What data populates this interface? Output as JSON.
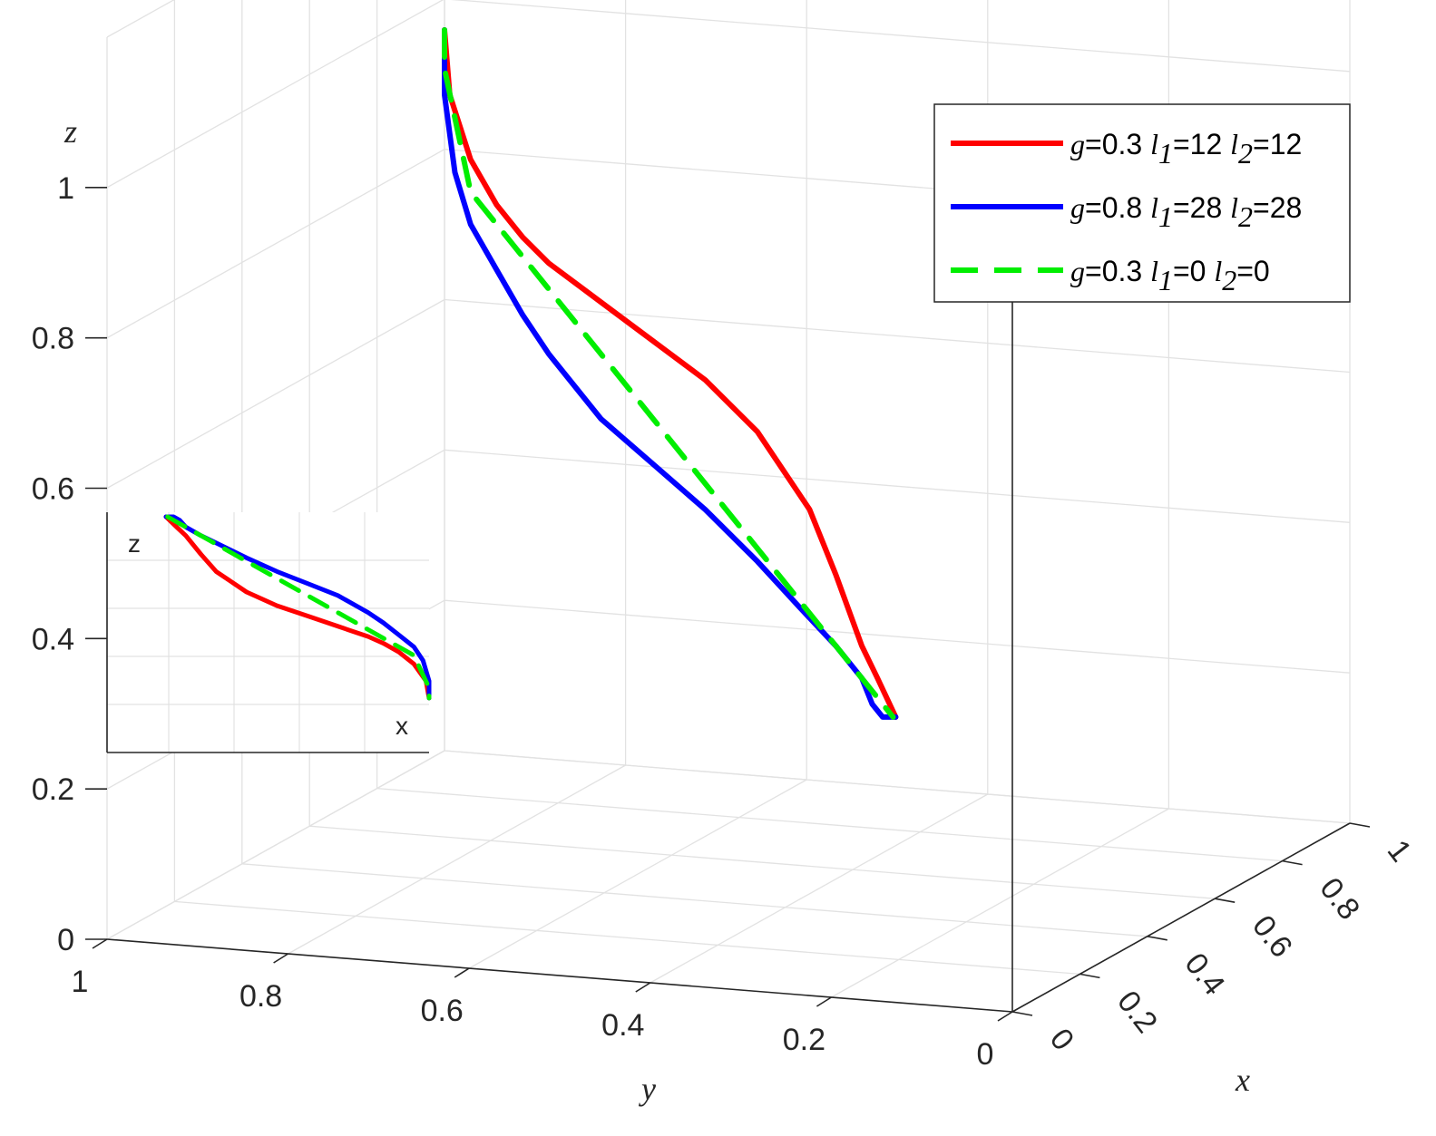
{
  "chart_data": {
    "type": "line",
    "title": "",
    "xlabel": "x",
    "ylabel": "y",
    "zlabel": "z",
    "xlim": [
      0,
      1
    ],
    "ylim": [
      0,
      1
    ],
    "zlim": [
      0,
      1.2
    ],
    "x_ticks": [
      "0",
      "0.2",
      "0.4",
      "0.6",
      "0.8",
      "1"
    ],
    "y_ticks": [
      "1",
      "0.8",
      "0.6",
      "0.4",
      "0.2",
      "0"
    ],
    "z_ticks": [
      "0",
      "0.2",
      "0.4",
      "0.6",
      "0.8",
      "1"
    ],
    "grid": true,
    "legend_position": "top-right",
    "series": [
      {
        "legend_g": "g",
        "legend_text": "=0.3 ",
        "l1_base": "l",
        "l1_sub": "1",
        "l1_val": "=12 ",
        "l2_base": "l",
        "l2_sub": "2",
        "l2_val": "=12",
        "color": "#ff0000",
        "dash": "solid",
        "points": [
          [
            0,
            0,
            1.2
          ],
          [
            0,
            0.01,
            1.1
          ],
          [
            0,
            0.05,
            1.0
          ],
          [
            0,
            0.1,
            0.93
          ],
          [
            0,
            0.15,
            0.88
          ],
          [
            0,
            0.2,
            0.84
          ],
          [
            0,
            0.3,
            0.78
          ],
          [
            0,
            0.4,
            0.72
          ],
          [
            0,
            0.5,
            0.66
          ],
          [
            0,
            0.6,
            0.58
          ],
          [
            0,
            0.7,
            0.46
          ],
          [
            0,
            0.75,
            0.36
          ],
          [
            0,
            0.8,
            0.25
          ],
          [
            0,
            0.83,
            0.2
          ],
          [
            0,
            0.865,
            0.14
          ]
        ]
      },
      {
        "legend_g": "g",
        "legend_text": "=0.8 ",
        "l1_base": "l",
        "l1_sub": "1",
        "l1_val": "=28 ",
        "l2_base": "l",
        "l2_sub": "2",
        "l2_val": "=28",
        "color": "#0000ff",
        "dash": "solid",
        "points": [
          [
            0,
            0,
            1.2
          ],
          [
            0,
            0,
            1.1
          ],
          [
            0,
            0.02,
            0.98
          ],
          [
            0,
            0.05,
            0.9
          ],
          [
            0,
            0.1,
            0.83
          ],
          [
            0,
            0.15,
            0.76
          ],
          [
            0,
            0.2,
            0.7
          ],
          [
            0,
            0.3,
            0.6
          ],
          [
            0,
            0.4,
            0.53
          ],
          [
            0,
            0.5,
            0.46
          ],
          [
            0,
            0.6,
            0.38
          ],
          [
            0,
            0.68,
            0.31
          ],
          [
            0,
            0.75,
            0.25
          ],
          [
            0,
            0.8,
            0.2
          ],
          [
            0,
            0.82,
            0.16
          ],
          [
            0,
            0.84,
            0.14
          ],
          [
            0,
            0.865,
            0.14
          ]
        ]
      },
      {
        "legend_g": "g",
        "legend_text": "=0.3 ",
        "l1_base": "l",
        "l1_sub": "1",
        "l1_val": "=0 ",
        "l2_base": "l",
        "l2_sub": "2",
        "l2_val": "=0",
        "color": "#00ee00",
        "dash": "dashed",
        "points": [
          [
            0,
            0,
            1.2
          ],
          [
            0,
            0,
            1.14
          ],
          [
            0,
            0.05,
            0.95
          ],
          [
            0,
            0.2,
            0.8
          ],
          [
            0,
            0.4,
            0.6
          ],
          [
            0,
            0.6,
            0.4
          ],
          [
            0,
            0.75,
            0.25
          ],
          [
            0,
            0.86,
            0.14
          ]
        ]
      }
    ],
    "inset": {
      "xlabel": "x",
      "ylabel": "z",
      "grid": true
    }
  }
}
